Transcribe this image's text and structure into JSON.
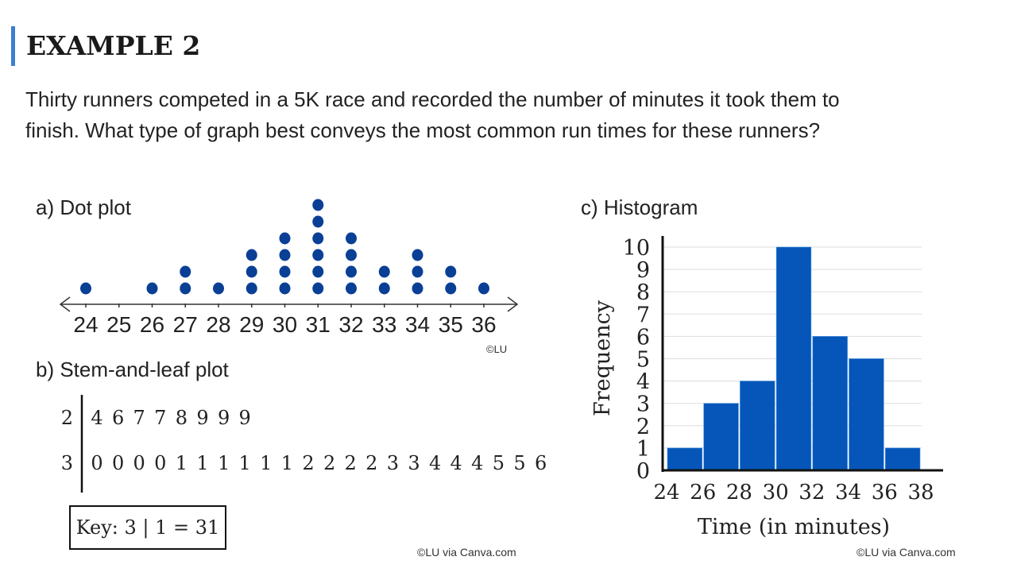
{
  "header": {
    "title": "EXAMPLE 2",
    "accent_color": "#3c7fd0"
  },
  "question": {
    "line1": "Thirty runners competed in a 5K race and recorded the number of minutes it took them to",
    "line2": "finish. What type of graph best conveys the most common run times for these runners?"
  },
  "credits": {
    "dot_plot": "©LU",
    "left": "©LU via Canva.com",
    "right": "©LU via Canva.com"
  },
  "chart_data": [
    {
      "type": "scatter",
      "subtype": "dot-plot",
      "label": "a) Dot plot",
      "categories": [
        24,
        25,
        26,
        27,
        28,
        29,
        30,
        31,
        32,
        33,
        34,
        35,
        36
      ],
      "values": [
        1,
        0,
        1,
        2,
        1,
        3,
        4,
        6,
        4,
        2,
        3,
        2,
        1
      ],
      "tick_labels": [
        "24",
        "25",
        "26",
        "27",
        "28",
        "29",
        "30",
        "31",
        "32",
        "33",
        "34",
        "35",
        "36"
      ],
      "color": "#0a3f96"
    },
    {
      "type": "table",
      "subtype": "stem-and-leaf",
      "label": "b) Stem-and-leaf plot",
      "rows": [
        {
          "stem": "2",
          "leaves": [
            "4",
            "6",
            "7",
            "7",
            "8",
            "9",
            "9",
            "9"
          ]
        },
        {
          "stem": "3",
          "leaves": [
            "0",
            "0",
            "0",
            "0",
            "1",
            "1",
            "1",
            "1",
            "1",
            "1",
            "2",
            "2",
            "2",
            "2",
            "3",
            "3",
            "4",
            "4",
            "4",
            "5",
            "5",
            "6"
          ]
        }
      ],
      "key": "Key: 3 | 1 = 31"
    },
    {
      "type": "bar",
      "subtype": "histogram",
      "label": "c) Histogram",
      "bins": [
        [
          24,
          26
        ],
        [
          26,
          28
        ],
        [
          28,
          30
        ],
        [
          30,
          32
        ],
        [
          32,
          34
        ],
        [
          34,
          36
        ],
        [
          36,
          38
        ]
      ],
      "values": [
        1,
        3,
        4,
        10,
        6,
        5,
        1
      ],
      "xticks": [
        "24",
        "26",
        "28",
        "30",
        "32",
        "34",
        "36",
        "38"
      ],
      "yticks": [
        "0",
        "1",
        "2",
        "3",
        "4",
        "5",
        "6",
        "7",
        "8",
        "9",
        "10"
      ],
      "xlabel": "Time (in minutes)",
      "ylabel": "Frequency",
      "xlim": [
        24,
        38
      ],
      "ylim": [
        0,
        10
      ],
      "grid": true,
      "color": "#0556b8"
    }
  ]
}
